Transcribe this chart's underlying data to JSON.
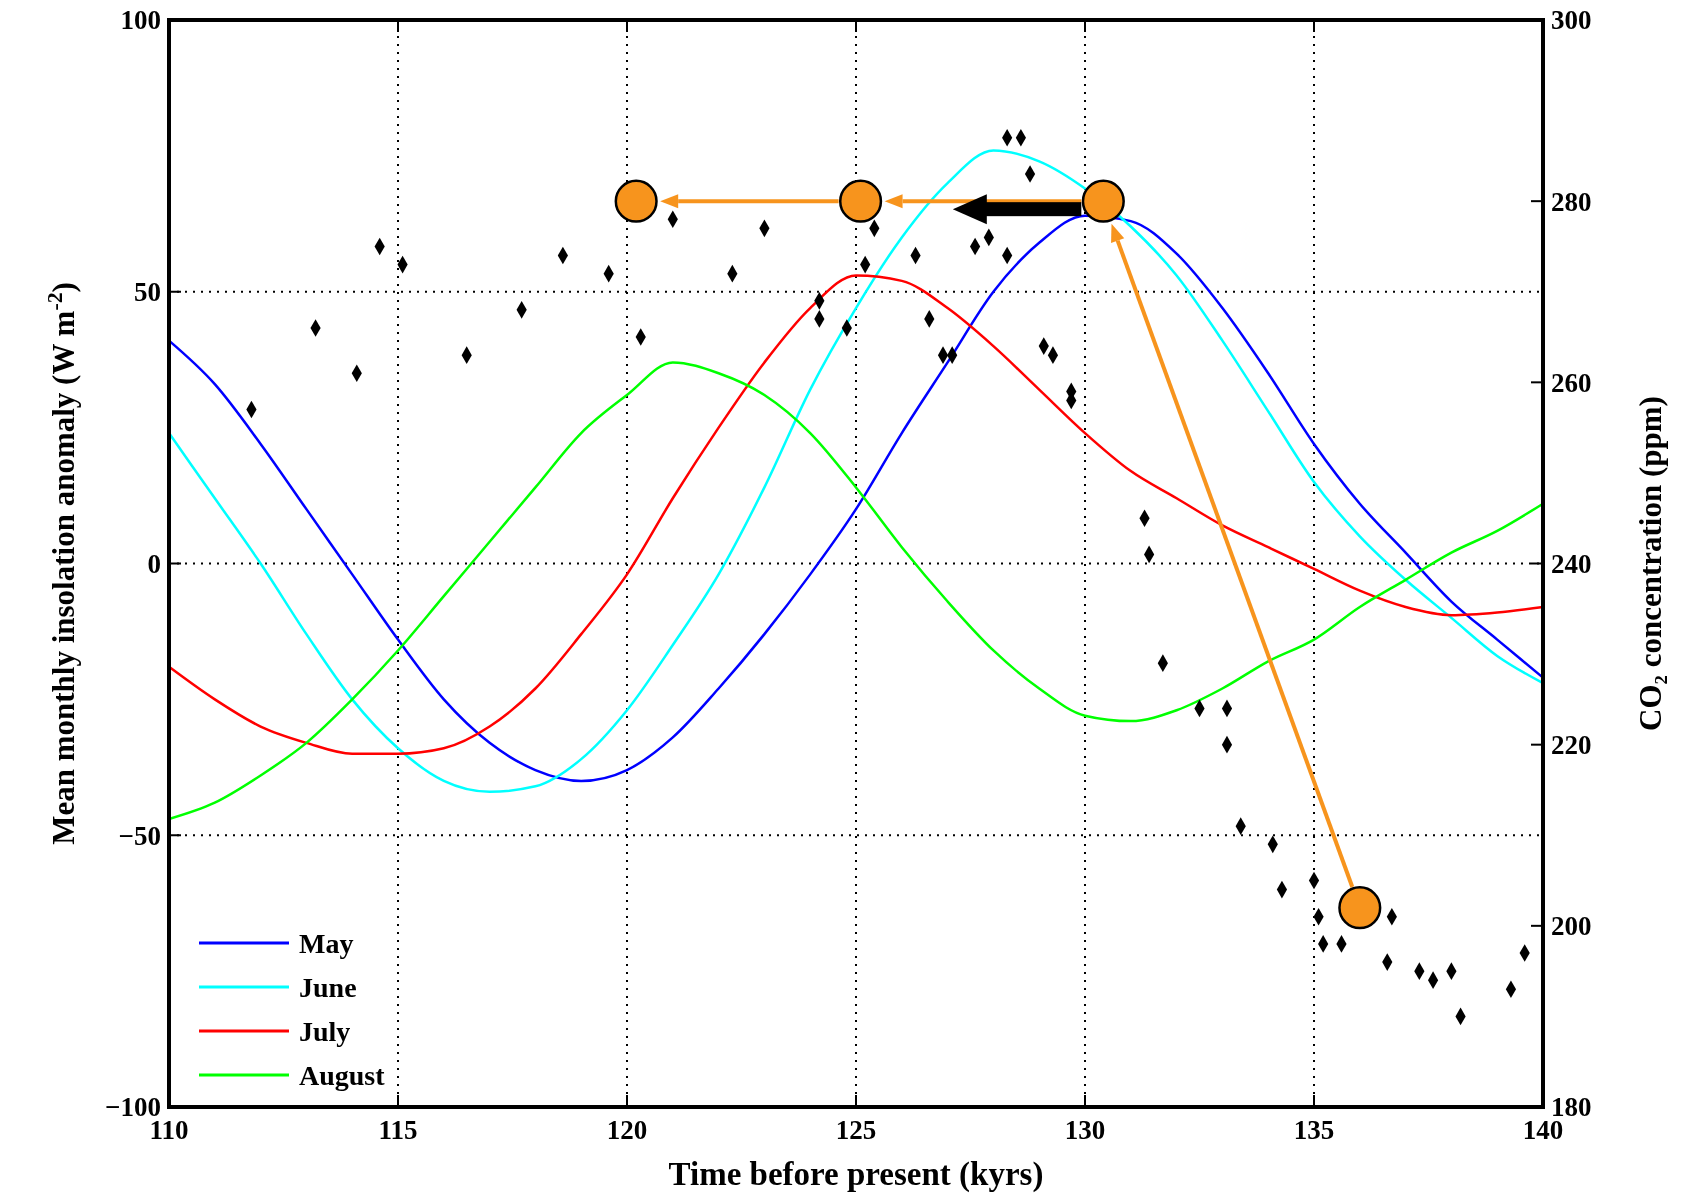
{
  "chart_data": {
    "type": "line",
    "xlabel": "Time before present (kyrs)",
    "ylabel": "Mean monthly insolation anomaly (W m$^{-2}$)",
    "y2label": "CO₂ concentration (ppm)",
    "xlim": [
      110,
      140
    ],
    "xticks": [
      110,
      115,
      120,
      125,
      130,
      135,
      140
    ],
    "ylim": [
      -100,
      100
    ],
    "yticks": [
      -100,
      -50,
      0,
      50,
      100
    ],
    "y2lim": [
      180,
      300
    ],
    "y2ticks": [
      180,
      200,
      220,
      240,
      260,
      280,
      300
    ],
    "grid": true,
    "legend": "bottom left",
    "line_style": "solid",
    "x": [
      110,
      111,
      112,
      113,
      114,
      115,
      116,
      117,
      118,
      119,
      120,
      121,
      122,
      123,
      124,
      125,
      126,
      127,
      128,
      129,
      130,
      131,
      132,
      133,
      134,
      135,
      136,
      137,
      138,
      139,
      140
    ],
    "series": [
      {
        "name": "May",
        "color": "#0000ff",
        "values": [
          41,
          33,
          22,
          10,
          -2,
          -14,
          -25,
          -33,
          -38,
          -40,
          -38,
          -32,
          -23,
          -13,
          -2,
          10,
          24,
          37,
          50,
          59,
          64,
          63,
          57,
          47,
          35,
          22,
          11,
          2,
          -7,
          -14,
          -21
        ]
      },
      {
        "name": "June",
        "color": "#00ffff",
        "values": [
          24,
          12,
          0,
          -13,
          -25,
          -34,
          -40,
          -42,
          -41,
          -36,
          -27,
          -15,
          -2,
          14,
          32,
          47,
          60,
          70,
          76,
          74,
          69,
          62,
          53,
          41,
          28,
          15,
          5,
          -3,
          -10,
          -17,
          -22
        ]
      },
      {
        "name": "July",
        "color": "#ff0000",
        "values": [
          -19,
          -25,
          -30,
          -33,
          -35,
          -35,
          -34,
          -30,
          -23,
          -13,
          -2,
          12,
          25,
          37,
          47,
          53,
          52,
          47,
          40,
          32,
          24,
          17,
          12,
          7,
          3,
          -1,
          -5,
          -8,
          -9.5,
          -9,
          -8
        ]
      },
      {
        "name": "August",
        "color": "#00ff00",
        "values": [
          -47,
          -44,
          -39,
          -33,
          -25,
          -16,
          -6,
          4,
          14,
          24,
          31,
          37,
          35,
          31,
          24,
          14,
          3,
          -7,
          -16,
          -23,
          -28,
          -29,
          -27,
          -23,
          -18,
          -14,
          -8,
          -3,
          2,
          6,
          11
        ]
      },
      {
        "type": "scatter",
        "axis": "y2",
        "marker": "diamond",
        "color": "#000000",
        "x": [
          111.8,
          113.2,
          114.1,
          114.6,
          115.1,
          116.5,
          117.7,
          118.6,
          119.6,
          120.3,
          121.0,
          122.3,
          123.0,
          124.2,
          124.2,
          124.8,
          125.2,
          125.4,
          126.3,
          126.6,
          126.9,
          127.1,
          127.6,
          127.9,
          128.3,
          128.3,
          128.6,
          128.8,
          129.1,
          129.3,
          129.7,
          129.7,
          131.3,
          131.4,
          131.7,
          132.5,
          133.1,
          133.1,
          133.4,
          134.1,
          134.3,
          135.0,
          135.1,
          135.2,
          135.6,
          136.7,
          136.6,
          137.3,
          137.6,
          138.0,
          138.2,
          139.3,
          139.6
        ],
        "values": [
          257,
          266,
          261,
          275,
          273,
          263,
          268,
          274,
          272,
          265,
          278,
          272,
          277,
          269,
          267,
          266,
          273,
          277,
          274,
          267,
          263,
          263,
          275,
          276,
          274,
          287,
          287,
          283,
          264,
          263,
          258,
          259,
          245,
          241,
          229,
          224,
          224,
          220,
          211,
          209,
          204,
          205,
          201,
          198,
          198,
          201,
          196,
          195,
          194,
          195,
          190,
          193,
          197
        ]
      },
      {
        "type": "scatter",
        "axis": "y2",
        "marker": "circle",
        "color": "#f7941d",
        "x": [
          120.2,
          125.1,
          130.4,
          136.0
        ],
        "values": [
          280,
          280,
          280,
          202
        ]
      }
    ]
  }
}
